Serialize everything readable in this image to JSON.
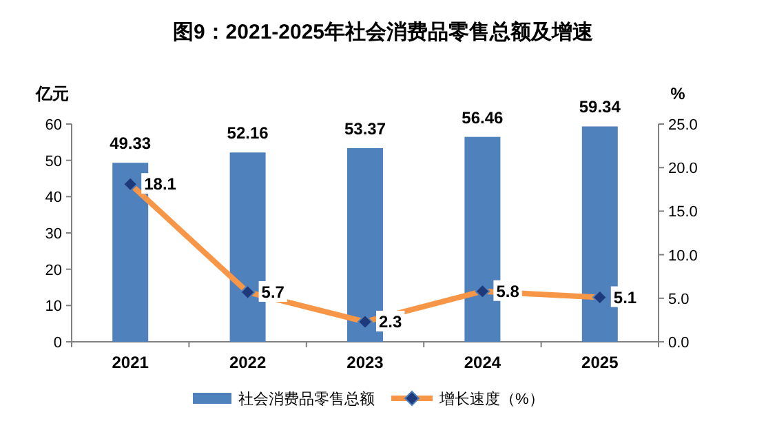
{
  "chart_data": {
    "type": "bar",
    "title": "图9：2021-2025年社会消费品零售总额及增速",
    "ylabel": "亿元",
    "y2label": "%",
    "categories": [
      "2021",
      "2022",
      "2023",
      "2024",
      "2025"
    ],
    "series": [
      {
        "name": "社会消费品零售总额",
        "color": "#4f81bd",
        "values": [
          49.33,
          52.16,
          53.37,
          56.46,
          59.34
        ]
      },
      {
        "name": "增长速度（%）",
        "type": "line",
        "axis": "y2",
        "color": "#f79646",
        "marker": "diamond",
        "values": [
          18.1,
          5.7,
          2.3,
          5.8,
          5.1
        ]
      }
    ],
    "ylim": [
      0,
      60
    ],
    "yticks": [
      0,
      10,
      20,
      30,
      40,
      50,
      60
    ],
    "y2lim": [
      0,
      25
    ],
    "y2ticks": [
      {
        "value": 0,
        "label": "0.0"
      },
      {
        "value": 5,
        "label": "5.0"
      },
      {
        "value": 10,
        "label": "10.0"
      },
      {
        "value": 15,
        "label": "15.0"
      },
      {
        "value": 20,
        "label": "20.0"
      },
      {
        "value": 25,
        "label": "25.0"
      }
    ],
    "data_labels": true,
    "legend": "bottom"
  }
}
